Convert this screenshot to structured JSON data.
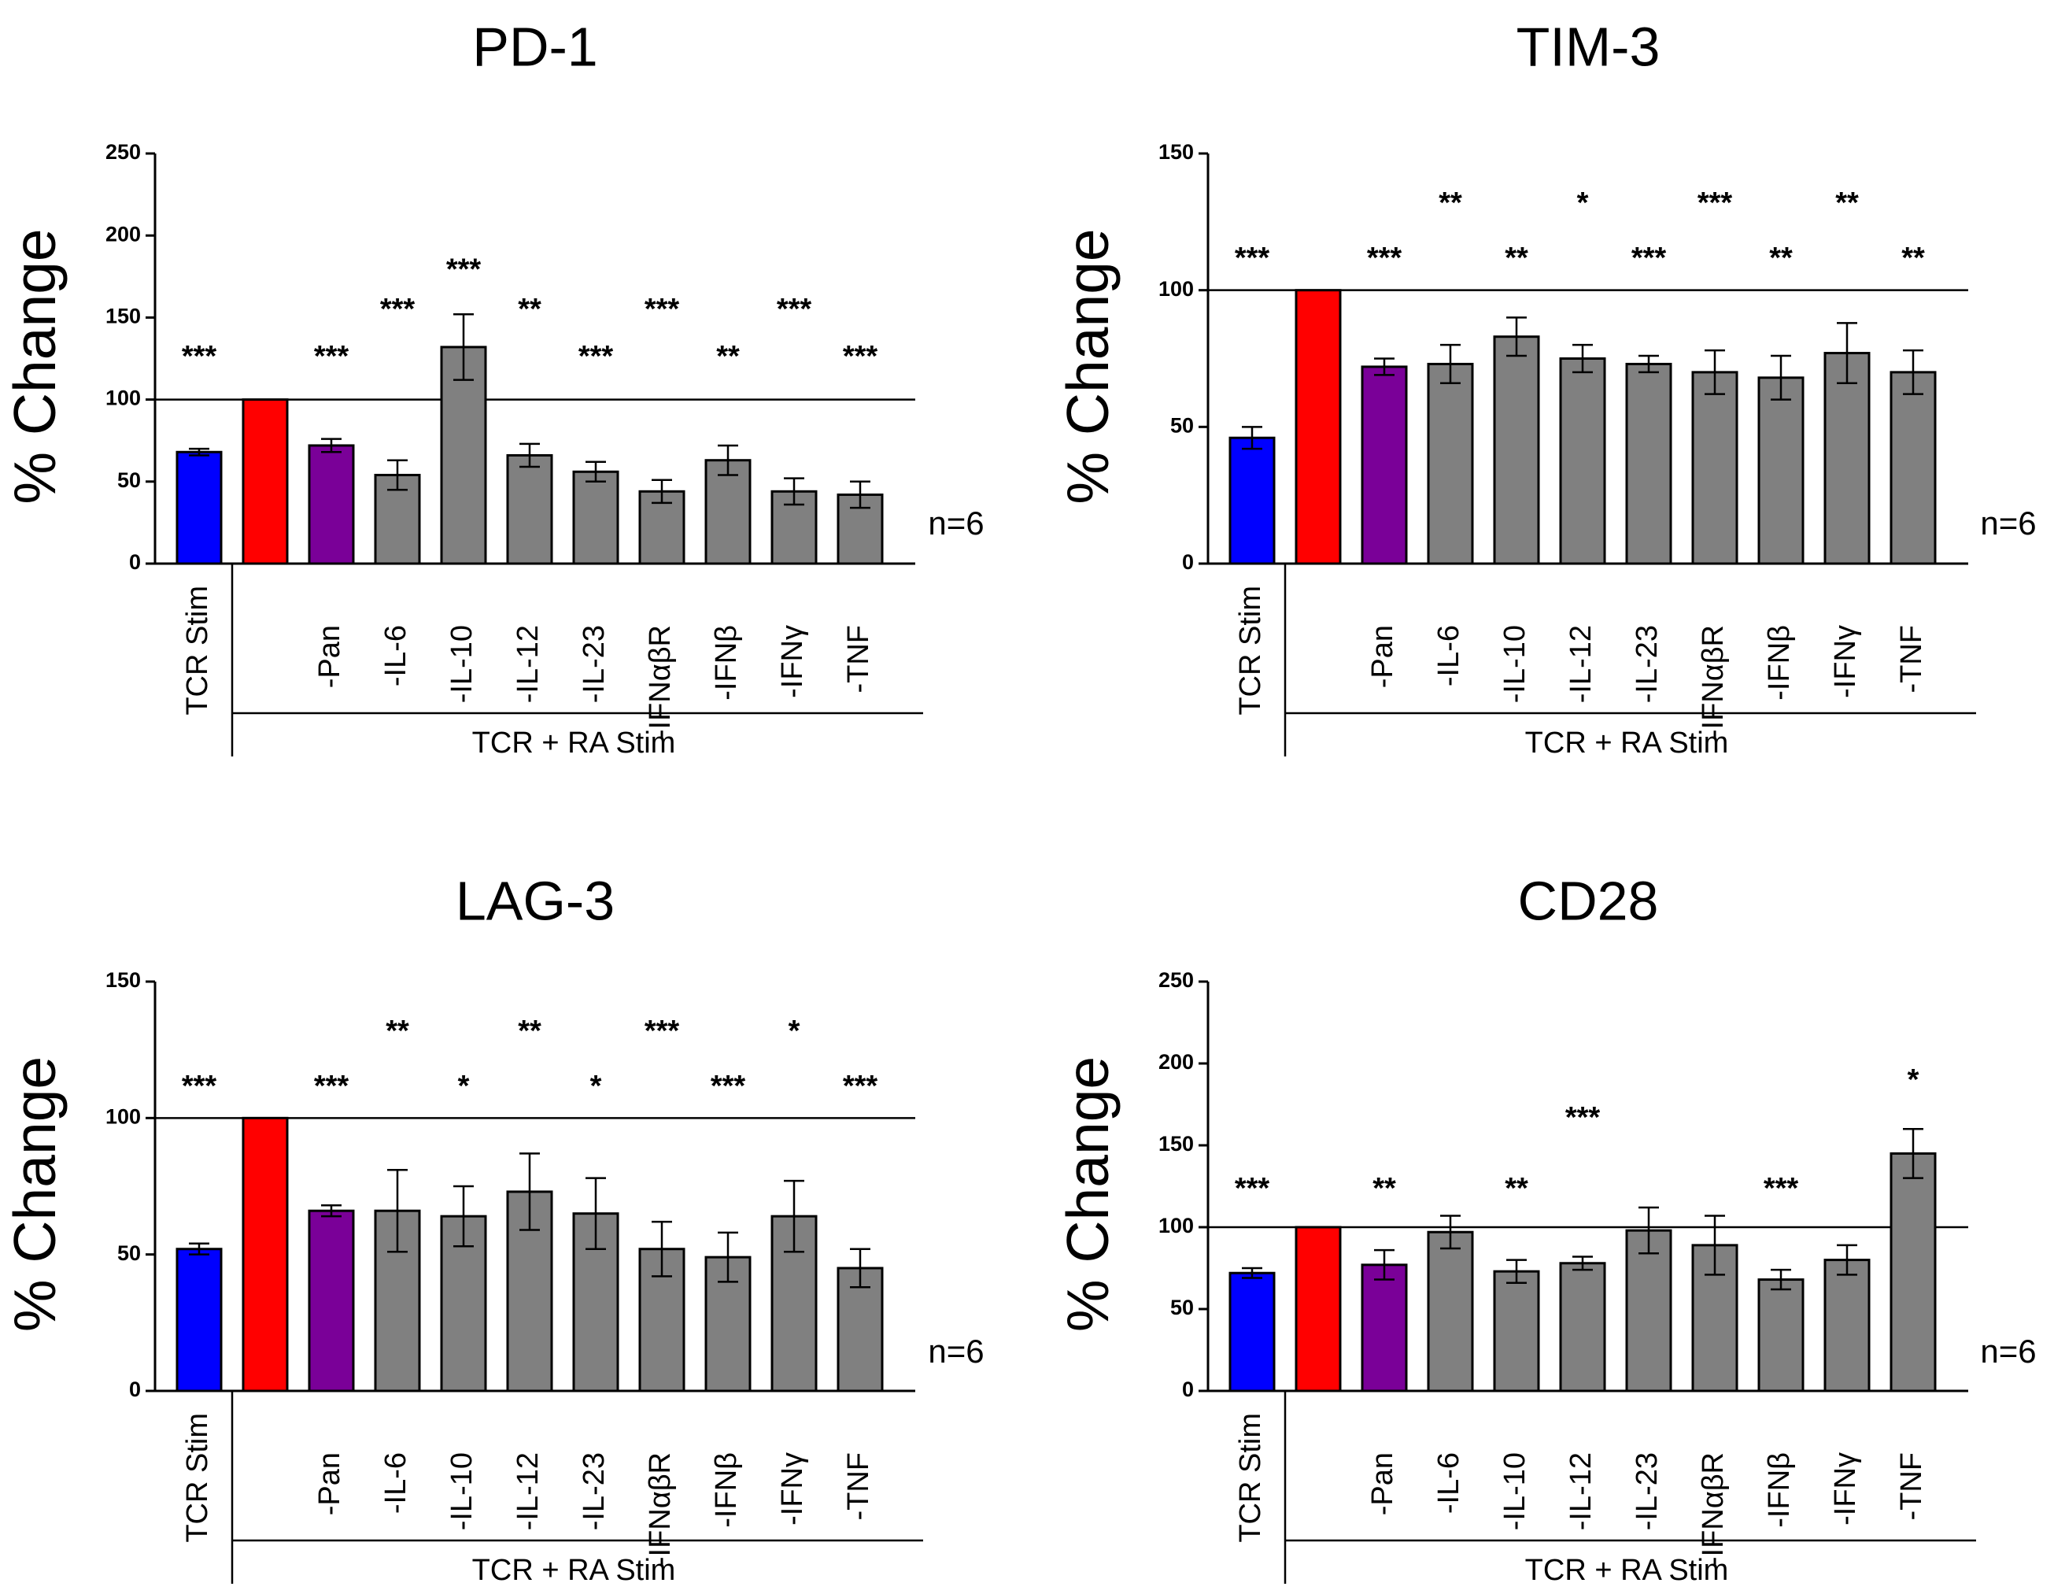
{
  "chart_data": [
    {
      "type": "bar",
      "title": "PD-1",
      "ylabel": "% Change",
      "ylim": [
        0,
        250
      ],
      "yticks": [
        0,
        50,
        100,
        150,
        200,
        250
      ],
      "reference_line": 100,
      "categories": [
        "TCR Stim",
        "",
        "-Pan",
        "-IL-6",
        "-IL-10",
        "-IL-12",
        "-IL-23",
        "-IFNαβR",
        "-IFNβ",
        "-IFNγ",
        "-TNF"
      ],
      "values": [
        68,
        100,
        72,
        54,
        132,
        66,
        56,
        44,
        63,
        44,
        42
      ],
      "errors": [
        2,
        0,
        4,
        9,
        20,
        7,
        6,
        7,
        9,
        8,
        8
      ],
      "colors": [
        "#0000ff",
        "#ff0000",
        "#7a0098",
        "#808080",
        "#808080",
        "#808080",
        "#808080",
        "#808080",
        "#808080",
        "#808080",
        "#808080"
      ],
      "significance": [
        "***",
        "",
        "***",
        "***",
        "***",
        "**",
        "***",
        "***",
        "**",
        "***",
        "***"
      ],
      "significance_levels": [
        0,
        0,
        0,
        1,
        2,
        1,
        0,
        1,
        0,
        1,
        0
      ],
      "group_label": "TCR + RA Stim",
      "n_label": "n=6"
    },
    {
      "type": "bar",
      "title": "TIM-3",
      "ylabel": "% Change",
      "ylim": [
        0,
        150
      ],
      "yticks": [
        0,
        50,
        100,
        150
      ],
      "reference_line": 100,
      "categories": [
        "TCR Stim",
        "",
        "-Pan",
        "-IL-6",
        "-IL-10",
        "-IL-12",
        "-IL-23",
        "-IFNαβR",
        "-IFNβ",
        "-IFNγ",
        "-TNF"
      ],
      "values": [
        46,
        100,
        72,
        73,
        83,
        75,
        73,
        70,
        68,
        77,
        70
      ],
      "errors": [
        4,
        0,
        3,
        7,
        7,
        5,
        3,
        8,
        8,
        11,
        8
      ],
      "colors": [
        "#0000ff",
        "#ff0000",
        "#7a0098",
        "#808080",
        "#808080",
        "#808080",
        "#808080",
        "#808080",
        "#808080",
        "#808080",
        "#808080"
      ],
      "significance": [
        "***",
        "",
        "***",
        "**",
        "**",
        "*",
        "***",
        "***",
        "**",
        "**",
        "**"
      ],
      "significance_levels": [
        0,
        0,
        0,
        1,
        0,
        1,
        0,
        1,
        0,
        1,
        0
      ],
      "group_label": "TCR + RA Stim",
      "n_label": "n=6"
    },
    {
      "type": "bar",
      "title": "LAG-3",
      "ylabel": "% Change",
      "ylim": [
        0,
        150
      ],
      "yticks": [
        0,
        50,
        100,
        150
      ],
      "reference_line": 100,
      "categories": [
        "TCR Stim",
        "",
        "-Pan",
        "-IL-6",
        "-IL-10",
        "-IL-12",
        "-IL-23",
        "-IFNαβR",
        "-IFNβ",
        "-IFNγ",
        "-TNF"
      ],
      "values": [
        52,
        100,
        66,
        66,
        64,
        73,
        65,
        52,
        49,
        64,
        45
      ],
      "errors": [
        2,
        0,
        2,
        15,
        11,
        14,
        13,
        10,
        9,
        13,
        7
      ],
      "colors": [
        "#0000ff",
        "#ff0000",
        "#7a0098",
        "#808080",
        "#808080",
        "#808080",
        "#808080",
        "#808080",
        "#808080",
        "#808080",
        "#808080"
      ],
      "significance": [
        "***",
        "",
        "***",
        "**",
        "*",
        "**",
        "*",
        "***",
        "***",
        "*",
        "***"
      ],
      "significance_levels": [
        0,
        0,
        0,
        1,
        0,
        1,
        0,
        1,
        0,
        1,
        0
      ],
      "group_label": "TCR + RA Stim",
      "n_label": "n=6"
    },
    {
      "type": "bar",
      "title": "CD28",
      "ylabel": "% Change",
      "ylim": [
        0,
        250
      ],
      "yticks": [
        0,
        50,
        100,
        150,
        200,
        250
      ],
      "reference_line": 100,
      "categories": [
        "TCR Stim",
        "",
        "-Pan",
        "-IL-6",
        "-IL-10",
        "-IL-12",
        "-IL-23",
        "-IFNαβR",
        "-IFNβ",
        "-IFNγ",
        "-TNF"
      ],
      "values": [
        72,
        100,
        77,
        97,
        73,
        78,
        98,
        89,
        68,
        80,
        145
      ],
      "errors": [
        3,
        0,
        9,
        10,
        7,
        4,
        14,
        18,
        6,
        9,
        15
      ],
      "colors": [
        "#0000ff",
        "#ff0000",
        "#7a0098",
        "#808080",
        "#808080",
        "#808080",
        "#808080",
        "#808080",
        "#808080",
        "#808080",
        "#808080"
      ],
      "significance": [
        "***",
        "",
        "**",
        "",
        "**",
        "***",
        "",
        "",
        "***",
        "",
        "*"
      ],
      "significance_levels": [
        0,
        0,
        0,
        0,
        0,
        1,
        0,
        0,
        0,
        0,
        2
      ],
      "group_label": "TCR + RA Stim",
      "n_label": "n=6"
    }
  ]
}
